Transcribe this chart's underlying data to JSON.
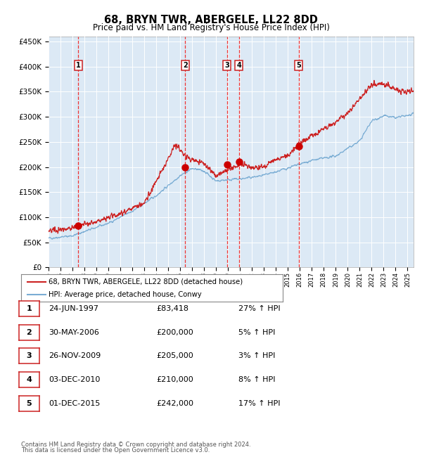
{
  "title": "68, BRYN TWR, ABERGELE, LL22 8DD",
  "subtitle": "Price paid vs. HM Land Registry's House Price Index (HPI)",
  "ylabel_ticks": [
    "£0",
    "£50K",
    "£100K",
    "£150K",
    "£200K",
    "£250K",
    "£300K",
    "£350K",
    "£400K",
    "£450K"
  ],
  "ytick_values": [
    0,
    50000,
    100000,
    150000,
    200000,
    250000,
    300000,
    350000,
    400000,
    450000
  ],
  "ylim": [
    0,
    460000
  ],
  "xlim_start": 1995.0,
  "xlim_end": 2025.5,
  "background_color": "#dce9f5",
  "grid_color": "#ffffff",
  "hpi_line_color": "#7aadd4",
  "price_line_color": "#cc2222",
  "sale_marker_color": "#cc0000",
  "dashed_line_color": "#ee3333",
  "number_box_color": "#cc2222",
  "sales": [
    {
      "num": 1,
      "date_dec": 1997.48,
      "price": 83418
    },
    {
      "num": 2,
      "date_dec": 2006.41,
      "price": 200000
    },
    {
      "num": 3,
      "date_dec": 2009.9,
      "price": 205000
    },
    {
      "num": 4,
      "date_dec": 2010.92,
      "price": 210000
    },
    {
      "num": 5,
      "date_dec": 2015.92,
      "price": 242000
    }
  ],
  "legend_line1": "68, BRYN TWR, ABERGELE, LL22 8DD (detached house)",
  "legend_line2": "HPI: Average price, detached house, Conwy",
  "footer1": "Contains HM Land Registry data © Crown copyright and database right 2024.",
  "footer2": "This data is licensed under the Open Government Licence v3.0.",
  "table_rows": [
    [
      "1",
      "24-JUN-1997",
      "£83,418",
      "27% ↑ HPI"
    ],
    [
      "2",
      "30-MAY-2006",
      "£200,000",
      "5% ↑ HPI"
    ],
    [
      "3",
      "26-NOV-2009",
      "£205,000",
      "3% ↑ HPI"
    ],
    [
      "4",
      "03-DEC-2010",
      "£210,000",
      "8% ↑ HPI"
    ],
    [
      "5",
      "01-DEC-2015",
      "£242,000",
      "17% ↑ HPI"
    ]
  ]
}
